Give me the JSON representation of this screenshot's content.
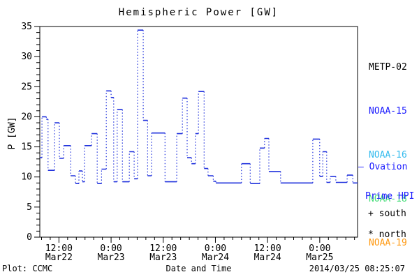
{
  "title": "Hemispheric Power [GW]",
  "footer": {
    "left": "Plot: CCMC",
    "timestamp": "2014/03/25 08:25:07"
  },
  "legend": {
    "satellites": [
      {
        "label": "METP-02",
        "color": "#000000"
      },
      {
        "label": "NOAA-15",
        "color": "#1a1aff"
      },
      {
        "label": "NOAA-16",
        "color": "#33bbee"
      },
      {
        "label": "NOAA-18",
        "color": "#44dd77"
      },
      {
        "label": "NOAA-19",
        "color": "#ff9911"
      }
    ],
    "model": {
      "line1": "— Ovation",
      "line2": "Prime HPI",
      "color": "#1a1aff"
    },
    "markers": [
      {
        "text": "+ south"
      },
      {
        "text": "* north"
      }
    ]
  },
  "chart_data": {
    "type": "line",
    "subtype": "step-histogram",
    "line_color": "#2233dd",
    "axis_color": "#000000",
    "title": "Hemispheric Power [GW]",
    "xlabel": "Date and Time",
    "ylabel": "P [GW]",
    "ylim": [
      0,
      35
    ],
    "ytick_major": 5,
    "ytick_minor": 1,
    "xlim_hours": [
      7.6,
      80.7
    ],
    "xtick_minor_hours": 2,
    "xticks": [
      {
        "hour": 12,
        "time": "12:00",
        "date": "Mar22"
      },
      {
        "hour": 24,
        "time": "0:00",
        "date": "Mar23"
      },
      {
        "hour": 36,
        "time": "12:00",
        "date": "Mar23"
      },
      {
        "hour": 48,
        "time": "0:00",
        "date": "Mar24"
      },
      {
        "hour": 60,
        "time": "12:00",
        "date": "Mar24"
      },
      {
        "hour": 72,
        "time": "0:00",
        "date": "Mar25"
      }
    ],
    "steps_units": "hours since 2014-03-22 00:00 UT, value in GW",
    "steps": [
      [
        7.6,
        8.1,
        13.2
      ],
      [
        8.1,
        9.1,
        20.0
      ],
      [
        9.1,
        9.5,
        19.6
      ],
      [
        9.5,
        11.0,
        11.1
      ],
      [
        11.0,
        12.1,
        19.0
      ],
      [
        12.1,
        13.1,
        13.1
      ],
      [
        13.1,
        14.7,
        15.2
      ],
      [
        14.7,
        15.8,
        10.2
      ],
      [
        15.8,
        16.6,
        8.9
      ],
      [
        16.6,
        17.4,
        11.0
      ],
      [
        17.4,
        17.9,
        9.2
      ],
      [
        17.9,
        19.5,
        15.2
      ],
      [
        19.5,
        20.8,
        17.2
      ],
      [
        20.8,
        21.8,
        8.9
      ],
      [
        21.8,
        22.9,
        11.3
      ],
      [
        22.9,
        24.0,
        24.3
      ],
      [
        24.0,
        24.6,
        23.2
      ],
      [
        24.6,
        25.4,
        9.2
      ],
      [
        25.4,
        26.6,
        21.2
      ],
      [
        26.6,
        28.2,
        9.2
      ],
      [
        28.2,
        29.3,
        14.2
      ],
      [
        29.3,
        30.1,
        9.7
      ],
      [
        30.1,
        31.4,
        34.4
      ],
      [
        31.4,
        32.4,
        19.4
      ],
      [
        32.4,
        33.3,
        10.2
      ],
      [
        33.3,
        36.4,
        17.3
      ],
      [
        36.4,
        39.1,
        9.2
      ],
      [
        39.1,
        40.4,
        17.2
      ],
      [
        40.4,
        41.5,
        23.1
      ],
      [
        41.5,
        42.5,
        13.2
      ],
      [
        42.5,
        43.4,
        12.2
      ],
      [
        43.4,
        44.1,
        17.2
      ],
      [
        44.1,
        45.4,
        24.2
      ],
      [
        45.4,
        46.3,
        11.4
      ],
      [
        46.3,
        47.5,
        10.2
      ],
      [
        47.5,
        48.1,
        9.3
      ],
      [
        48.1,
        54.0,
        9.0
      ],
      [
        54.0,
        56.0,
        12.2
      ],
      [
        56.0,
        58.2,
        8.9
      ],
      [
        58.2,
        59.3,
        14.8
      ],
      [
        59.3,
        60.3,
        16.4
      ],
      [
        60.3,
        63.0,
        10.9
      ],
      [
        63.0,
        70.4,
        9.0
      ],
      [
        70.4,
        72.0,
        16.3
      ],
      [
        72.0,
        72.7,
        10.1
      ],
      [
        72.7,
        73.6,
        14.2
      ],
      [
        73.6,
        74.4,
        9.1
      ],
      [
        74.4,
        75.7,
        10.1
      ],
      [
        75.7,
        78.3,
        9.1
      ],
      [
        78.3,
        79.6,
        10.3
      ],
      [
        79.6,
        80.7,
        9.0
      ]
    ],
    "legend_position": "right",
    "grid": false
  }
}
